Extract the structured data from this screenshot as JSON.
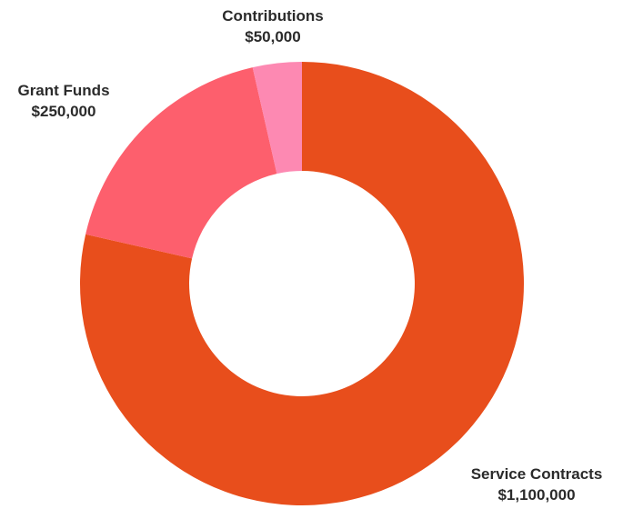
{
  "chart_data": {
    "type": "pie",
    "donut": true,
    "slices": [
      {
        "label": "Service Contracts",
        "value_text": "$1,100,000",
        "value": 1100000,
        "color": "#e84e1c"
      },
      {
        "label": "Grant Funds",
        "value_text": "$250,000",
        "value": 250000,
        "color": "#fd5f6d"
      },
      {
        "label": "Contributions",
        "value_text": "$50,000",
        "value": 50000,
        "color": "#fd89b2"
      }
    ]
  }
}
